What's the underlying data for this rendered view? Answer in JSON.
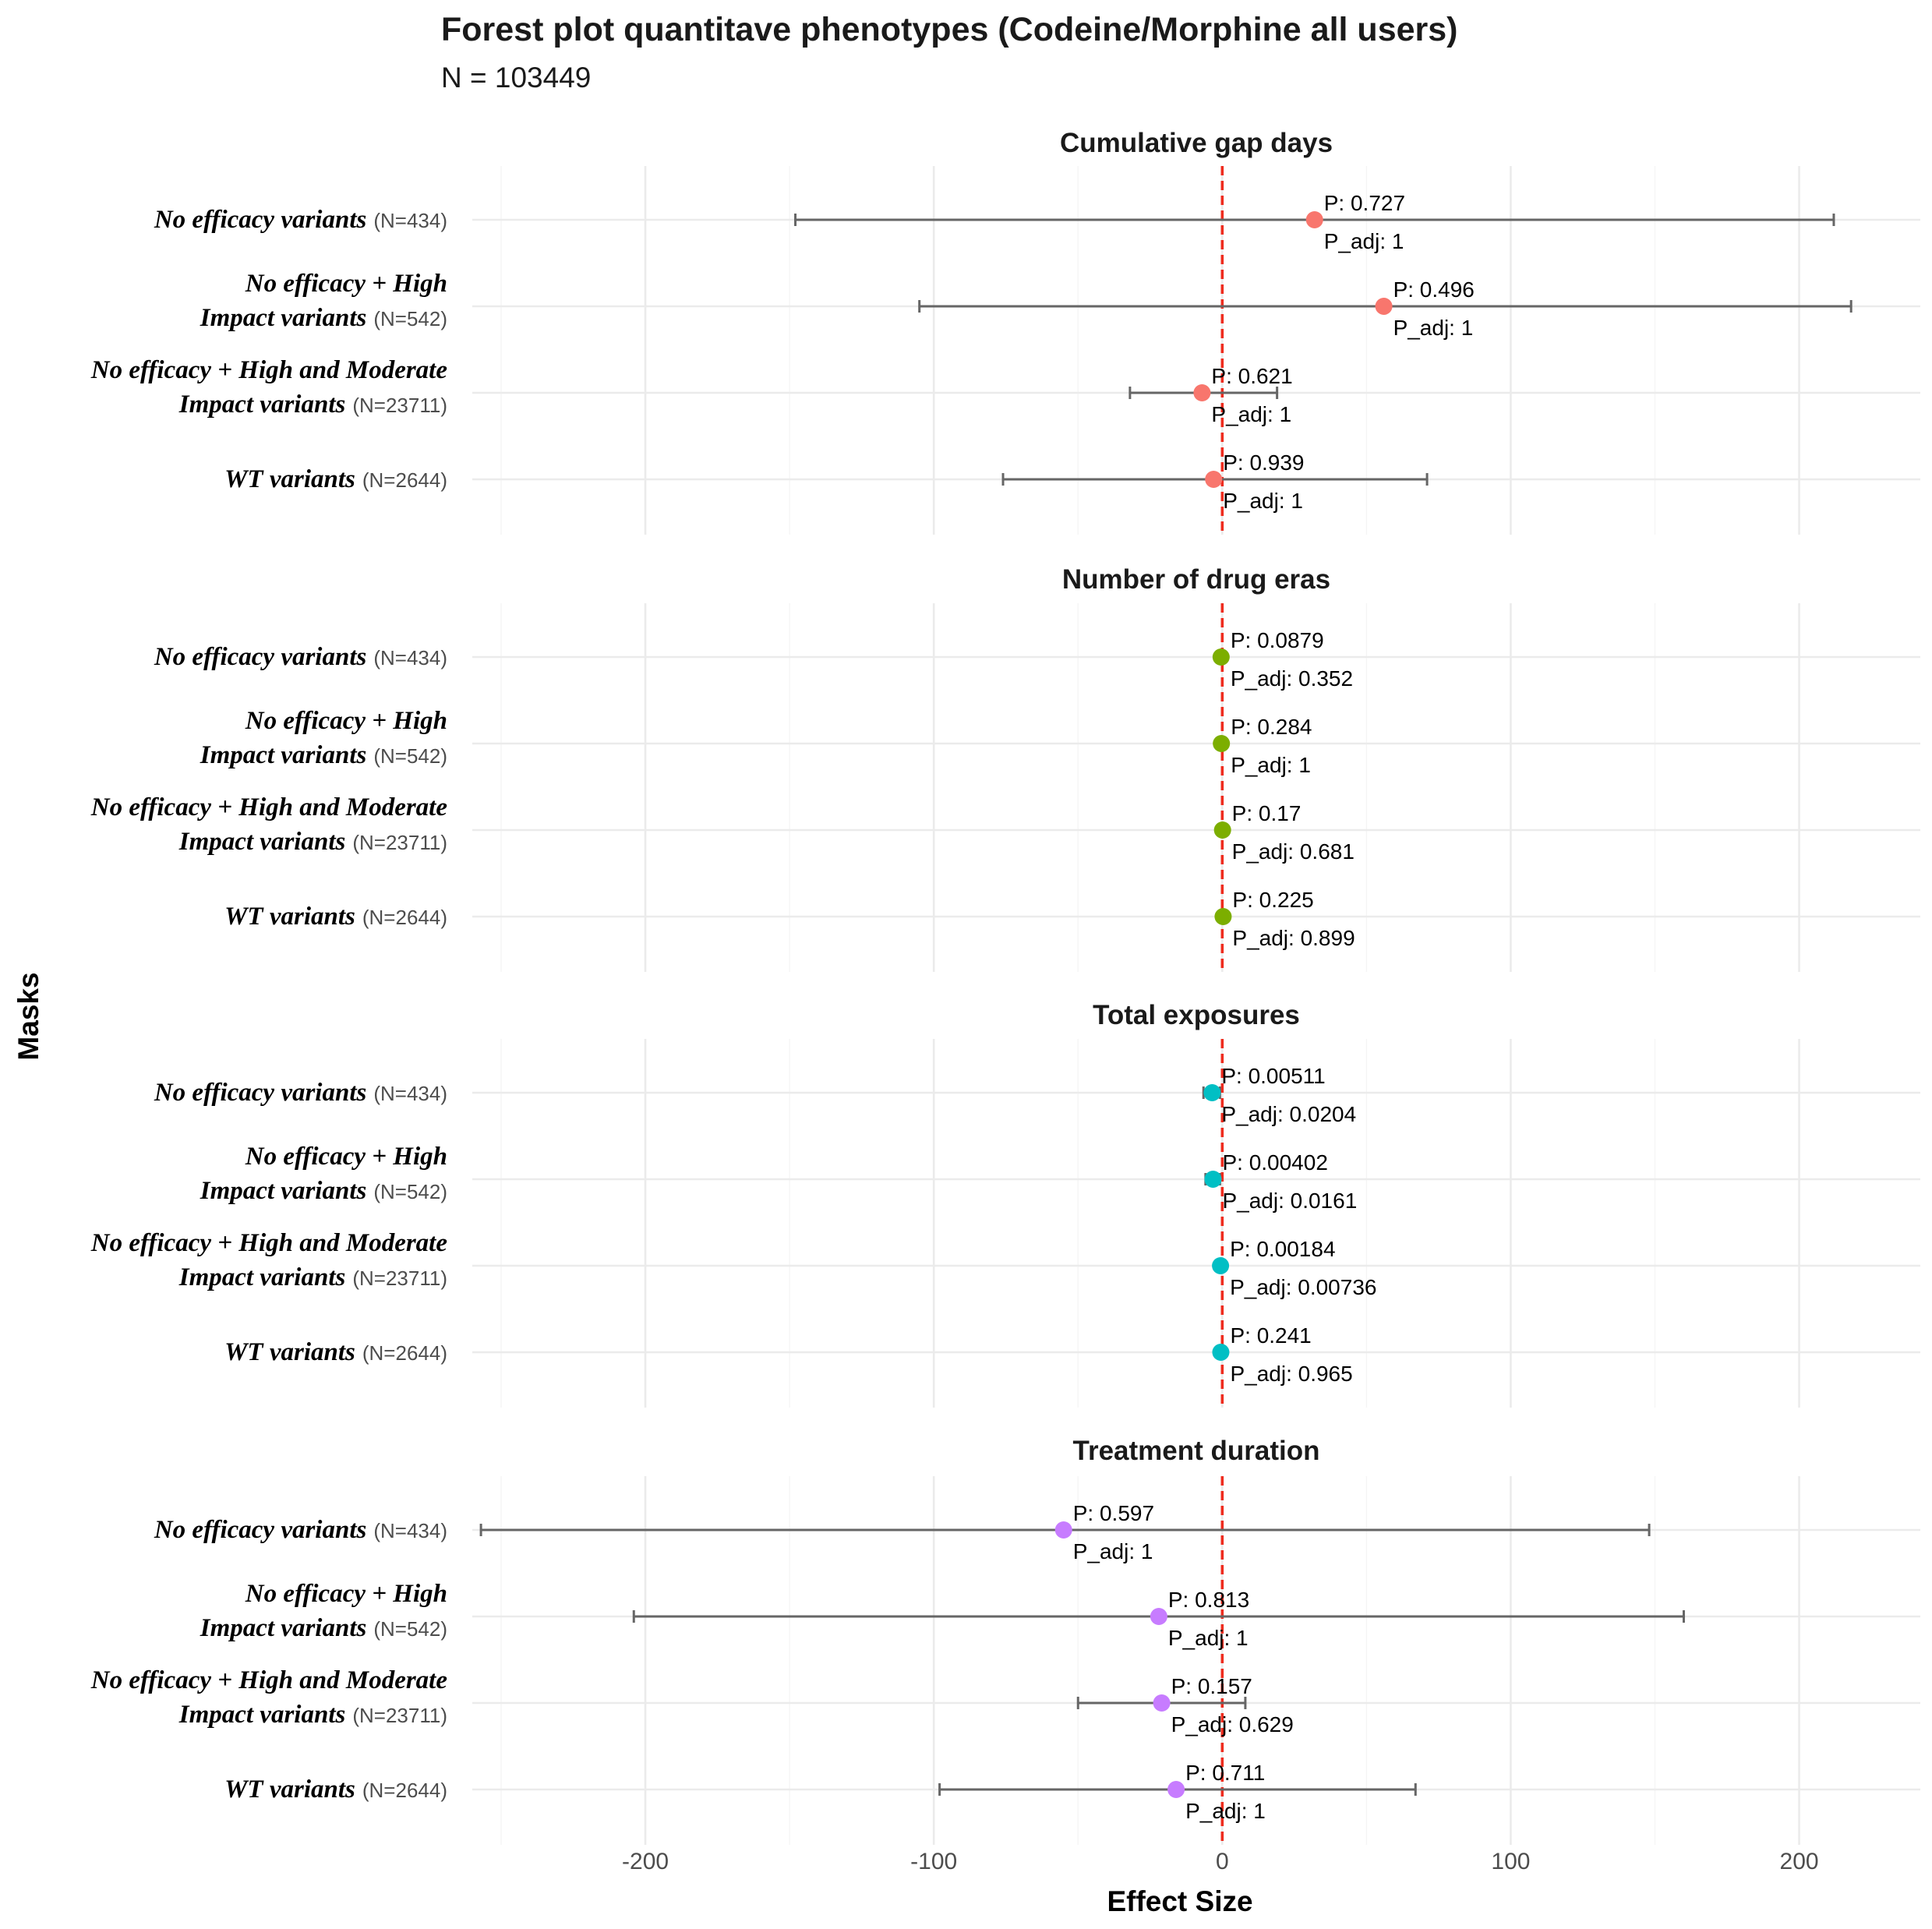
{
  "chart_data": {
    "type": "forest",
    "title": "Forest plot quantitave phenotypes (Codeine/Morphine all users)",
    "subtitle": "N = 103449",
    "xlabel": "Effect Size",
    "ylabel": "Masks",
    "xlim": [
      -260,
      242
    ],
    "xticks": [
      -200,
      -100,
      0,
      100,
      200
    ],
    "xtick_labels": [
      "-200",
      "-100",
      "0",
      "100",
      "200"
    ],
    "reference_line": 0,
    "reference_color": "#ee2c1e",
    "grid": true,
    "legend": "none",
    "masks": [
      {
        "lines": [
          "No efficacy variants"
        ],
        "n": "(N=434)"
      },
      {
        "lines": [
          "No efficacy + High",
          "Impact variants"
        ],
        "n": "(N=542)"
      },
      {
        "lines": [
          "No efficacy + High and Moderate",
          "Impact variants"
        ],
        "n": "(N=23711)"
      },
      {
        "lines": [
          "WT variants"
        ],
        "n": "(N=2644)"
      }
    ],
    "panels": [
      {
        "name": "Cumulative gap days",
        "color": "#f8766d",
        "rows": [
          {
            "estimate": 32,
            "lower": -148,
            "upper": 212,
            "p": "P: 0.727",
            "p_adj": "P_adj: 1"
          },
          {
            "estimate": 56,
            "lower": -105,
            "upper": 218,
            "p": "P: 0.496",
            "p_adj": "P_adj: 1"
          },
          {
            "estimate": -7,
            "lower": -32,
            "upper": 19,
            "p": "P: 0.621",
            "p_adj": "P_adj: 1"
          },
          {
            "estimate": -3,
            "lower": -76,
            "upper": 71,
            "p": "P: 0.939",
            "p_adj": "P_adj: 1"
          }
        ]
      },
      {
        "name": "Number of drug eras",
        "color": "#7cae00",
        "rows": [
          {
            "estimate": -0.4,
            "lower": -0.8,
            "upper": 0.1,
            "p": "P: 0.0879",
            "p_adj": "P_adj: 0.352"
          },
          {
            "estimate": -0.3,
            "lower": -0.7,
            "upper": 0.2,
            "p": "P: 0.284",
            "p_adj": "P_adj: 1"
          },
          {
            "estimate": 0.1,
            "lower": -0.1,
            "upper": 0.3,
            "p": "P: 0.17",
            "p_adj": "P_adj: 0.681"
          },
          {
            "estimate": 0.3,
            "lower": -0.2,
            "upper": 0.8,
            "p": "P: 0.225",
            "p_adj": "P_adj: 0.899"
          }
        ]
      },
      {
        "name": "Total exposures",
        "color": "#00bfc4",
        "rows": [
          {
            "estimate": -3.5,
            "lower": -6.5,
            "upper": -0.8,
            "p": "P: 0.00511",
            "p_adj": "P_adj: 0.0204"
          },
          {
            "estimate": -3.2,
            "lower": -5.8,
            "upper": -0.8,
            "p": "P: 0.00402",
            "p_adj": "P_adj: 0.0161"
          },
          {
            "estimate": -0.6,
            "lower": -1.0,
            "upper": -0.2,
            "p": "P: 0.00184",
            "p_adj": "P_adj: 0.00736"
          },
          {
            "estimate": -0.5,
            "lower": -1.5,
            "upper": 0.4,
            "p": "P: 0.241",
            "p_adj": "P_adj: 0.965"
          }
        ]
      },
      {
        "name": "Treatment duration",
        "color": "#c77cff",
        "rows": [
          {
            "estimate": -55,
            "lower": -257,
            "upper": 148,
            "p": "P: 0.597",
            "p_adj": "P_adj: 1"
          },
          {
            "estimate": -22,
            "lower": -204,
            "upper": 160,
            "p": "P: 0.813",
            "p_adj": "P_adj: 1"
          },
          {
            "estimate": -21,
            "lower": -50,
            "upper": 8,
            "p": "P: 0.157",
            "p_adj": "P_adj: 0.629"
          },
          {
            "estimate": -16,
            "lower": -98,
            "upper": 67,
            "p": "P: 0.711",
            "p_adj": "P_adj: 1"
          }
        ]
      }
    ]
  }
}
